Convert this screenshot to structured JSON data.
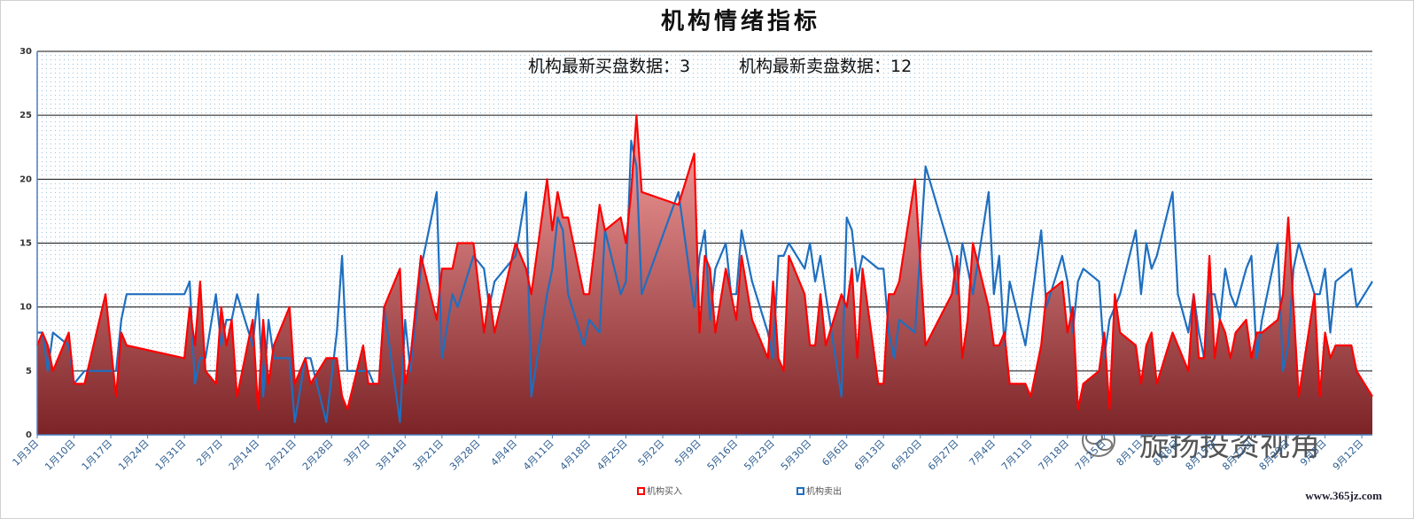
{
  "chart_data": {
    "type": "line",
    "title": "机构情绪指标",
    "annotations": [
      {
        "label": "机构最新买盘数据：",
        "value": 3
      },
      {
        "label": "机构最新卖盘数据：",
        "value": 12
      }
    ],
    "watermark": "旋扬投资视角",
    "source": "www.365jz.com",
    "x": [
      "01-03",
      "01-04",
      "01-05",
      "01-06",
      "01-09",
      "01-10",
      "01-12",
      "01-16",
      "01-18",
      "01-19",
      "01-20",
      "01-31",
      "02-01",
      "02-02",
      "02-03",
      "02-04",
      "02-06",
      "02-07",
      "02-08",
      "02-09",
      "02-10",
      "02-13",
      "02-14",
      "02-15",
      "02-16",
      "02-17",
      "02-20",
      "02-21",
      "02-23",
      "02-24",
      "02-27",
      "03-01",
      "03-02",
      "03-03",
      "03-06",
      "03-07",
      "03-08",
      "03-09",
      "03-10",
      "03-13",
      "03-14",
      "03-15",
      "03-17",
      "03-20",
      "03-21",
      "03-23",
      "03-24",
      "03-27",
      "03-29",
      "03-30",
      "03-31",
      "04-04",
      "04-06",
      "04-07",
      "04-10",
      "04-11",
      "04-12",
      "04-13",
      "04-14",
      "04-17",
      "04-18",
      "04-20",
      "04-21",
      "04-24",
      "04-25",
      "04-26",
      "04-27",
      "04-28",
      "05-05",
      "05-08",
      "05-09",
      "05-10",
      "05-11",
      "05-12",
      "05-14",
      "05-15",
      "05-16",
      "05-17",
      "05-19",
      "05-22",
      "05-23",
      "05-24",
      "05-25",
      "05-26",
      "05-29",
      "05-30",
      "05-31",
      "06-01",
      "06-02",
      "06-05",
      "06-06",
      "06-07",
      "06-08",
      "06-09",
      "06-12",
      "06-13",
      "06-14",
      "06-15",
      "06-16",
      "06-19",
      "06-21",
      "06-26",
      "06-27",
      "06-28",
      "06-29",
      "06-30",
      "07-03",
      "07-04",
      "07-05",
      "07-06",
      "07-07",
      "07-10",
      "07-11",
      "07-13",
      "07-14",
      "07-17",
      "07-18",
      "07-19",
      "07-20",
      "07-21",
      "07-24",
      "07-25",
      "07-26",
      "07-27",
      "07-28",
      "07-31",
      "08-01",
      "08-02",
      "08-03",
      "08-04",
      "08-07",
      "08-08",
      "08-10",
      "08-11",
      "08-12",
      "08-13",
      "08-14",
      "08-15",
      "08-16",
      "08-17",
      "08-18",
      "08-19",
      "08-21",
      "08-22",
      "08-23",
      "08-24",
      "08-27",
      "08-28",
      "08-29",
      "08-30",
      "08-31",
      "09-03",
      "09-04",
      "09-05",
      "09-06",
      "09-07",
      "09-10",
      "09-11",
      "09-14"
    ],
    "series": [
      {
        "name": "机构买入",
        "color": "#ff0000",
        "fill_top": "#fca3a3",
        "fill_bottom": "#7b2326",
        "values": [
          7,
          8,
          7,
          5,
          8,
          4,
          4,
          11,
          3,
          8,
          7,
          6,
          10,
          7,
          12,
          5,
          4,
          10,
          7,
          9,
          3,
          9,
          2,
          9,
          4,
          7,
          10,
          4,
          6,
          4,
          6,
          6,
          3,
          2,
          7,
          4,
          4,
          4,
          10,
          13,
          4,
          6,
          14,
          9,
          13,
          13,
          15,
          15,
          8,
          11,
          8,
          15,
          13,
          11,
          20,
          16,
          19,
          17,
          17,
          11,
          11,
          18,
          16,
          17,
          15,
          19,
          25,
          19,
          18,
          22,
          8,
          14,
          13,
          8,
          13,
          11,
          9,
          14,
          9,
          6,
          12,
          6,
          5,
          14,
          11,
          7,
          7,
          11,
          7,
          11,
          10,
          13,
          6,
          13,
          4,
          4,
          11,
          11,
          12,
          20,
          7,
          11,
          14,
          6,
          9,
          15,
          10,
          7,
          7,
          8,
          4,
          4,
          3,
          7,
          11,
          12,
          8,
          10,
          2,
          4,
          5,
          8,
          2,
          11,
          8,
          7,
          4,
          7,
          8,
          4,
          8,
          7,
          5,
          11,
          6,
          6,
          14,
          6,
          9,
          8,
          6,
          8,
          9,
          6,
          8,
          8,
          9,
          11,
          17,
          10,
          3,
          11,
          3,
          8,
          6,
          7,
          7,
          5,
          3
        ]
      },
      {
        "name": "机构卖出",
        "color": "#1f6fbf",
        "values": [
          8,
          8,
          5,
          8,
          7,
          4,
          5,
          5,
          5,
          9,
          11,
          11,
          12,
          4,
          6,
          6,
          11,
          7,
          9,
          9,
          11,
          7,
          11,
          3,
          9,
          6,
          6,
          1,
          6,
          6,
          1,
          8,
          14,
          5,
          5,
          5,
          4,
          4,
          10,
          1,
          9,
          5,
          13,
          19,
          6,
          11,
          10,
          14,
          13,
          10,
          12,
          14,
          19,
          3,
          11,
          13,
          17,
          16,
          11,
          7,
          9,
          8,
          16,
          11,
          12,
          23,
          21,
          11,
          19,
          10,
          14,
          16,
          9,
          13,
          15,
          11,
          11,
          16,
          12,
          8,
          6,
          14,
          14,
          15,
          13,
          15,
          12,
          14,
          11,
          3,
          17,
          16,
          12,
          14,
          13,
          13,
          8,
          6,
          9,
          8,
          21,
          14,
          11,
          15,
          13,
          11,
          19,
          11,
          14,
          7,
          12,
          7,
          10,
          16,
          10,
          14,
          12,
          8,
          12,
          13,
          12,
          6,
          9,
          10,
          11,
          16,
          11,
          15,
          13,
          14,
          19,
          11,
          8,
          11,
          8,
          6,
          11,
          11,
          9,
          13,
          11,
          10,
          13,
          14,
          6,
          9,
          15,
          5,
          7,
          13,
          15,
          11,
          11,
          13,
          8,
          12,
          13,
          10,
          12
        ]
      }
    ],
    "xlim": [
      "01-03",
      "09-14"
    ],
    "xticks": [
      {
        "value": "01-03",
        "label": "1月3日"
      },
      {
        "value": "01-10",
        "label": "1月10日"
      },
      {
        "value": "01-17",
        "label": "1月17日"
      },
      {
        "value": "01-24",
        "label": "1月24日"
      },
      {
        "value": "01-31",
        "label": "1月31日"
      },
      {
        "value": "02-07",
        "label": "2月7日"
      },
      {
        "value": "02-14",
        "label": "2月14日"
      },
      {
        "value": "02-21",
        "label": "2月21日"
      },
      {
        "value": "02-28",
        "label": "2月28日"
      },
      {
        "value": "03-07",
        "label": "3月7日"
      },
      {
        "value": "03-14",
        "label": "3月14日"
      },
      {
        "value": "03-21",
        "label": "3月21日"
      },
      {
        "value": "03-28",
        "label": "3月28日"
      },
      {
        "value": "04-04",
        "label": "4月4日"
      },
      {
        "value": "04-11",
        "label": "4月11日"
      },
      {
        "value": "04-18",
        "label": "4月18日"
      },
      {
        "value": "04-25",
        "label": "4月25日"
      },
      {
        "value": "05-02",
        "label": "5月2日"
      },
      {
        "value": "05-09",
        "label": "5月9日"
      },
      {
        "value": "05-16",
        "label": "5月16日"
      },
      {
        "value": "05-23",
        "label": "5月23日"
      },
      {
        "value": "05-30",
        "label": "5月30日"
      },
      {
        "value": "06-06",
        "label": "6月6日"
      },
      {
        "value": "06-13",
        "label": "6月13日"
      },
      {
        "value": "06-20",
        "label": "6月20日"
      },
      {
        "value": "06-27",
        "label": "6月27日"
      },
      {
        "value": "07-04",
        "label": "7月4日"
      },
      {
        "value": "07-11",
        "label": "7月11日"
      },
      {
        "value": "07-18",
        "label": "7月18日"
      },
      {
        "value": "07-25",
        "label": "7月25日"
      },
      {
        "value": "08-01",
        "label": "8月1日"
      },
      {
        "value": "08-08",
        "label": "8月8日"
      },
      {
        "value": "08-15",
        "label": "8月15日"
      },
      {
        "value": "08-22",
        "label": "8月22日"
      },
      {
        "value": "08-29",
        "label": "8月29日"
      },
      {
        "value": "09-05",
        "label": "9月5日"
      },
      {
        "value": "09-12",
        "label": "9月12日"
      }
    ],
    "ylim": [
      0,
      30
    ],
    "yticks": [
      0,
      5,
      10,
      15,
      20,
      25,
      30
    ],
    "grid": true,
    "legend": "bottom"
  }
}
